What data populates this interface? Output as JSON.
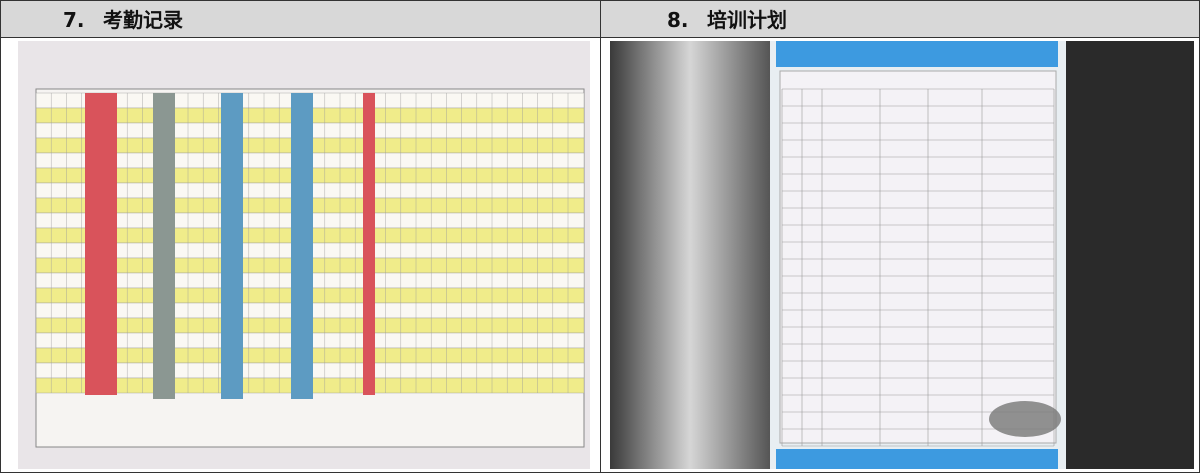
{
  "sections": [
    {
      "number": "7.",
      "title": "考勤记录"
    },
    {
      "number": "8.",
      "title": "培训计划"
    }
  ]
}
